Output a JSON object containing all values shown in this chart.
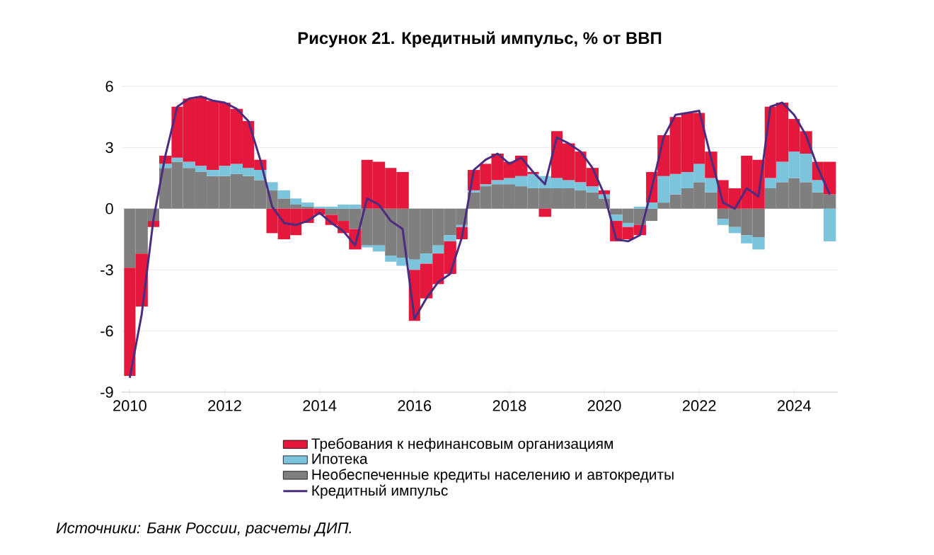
{
  "chart_data": {
    "type": "bar",
    "stacked": true,
    "title": "Рисунок 21. Кредитный импульс, % от ВВП",
    "annotations": [
      "Источники: Банк России, расчеты ДИП."
    ],
    "x": [
      "2010-01",
      "2010-04",
      "2010-07",
      "2010-10",
      "2011-01",
      "2011-04",
      "2011-07",
      "2011-10",
      "2012-01",
      "2012-04",
      "2012-07",
      "2012-10",
      "2013-01",
      "2013-04",
      "2013-07",
      "2013-10",
      "2014-01",
      "2014-04",
      "2014-07",
      "2014-10",
      "2015-01",
      "2015-04",
      "2015-07",
      "2015-10",
      "2016-01",
      "2016-04",
      "2016-07",
      "2016-10",
      "2017-01",
      "2017-04",
      "2017-07",
      "2017-10",
      "2018-01",
      "2018-04",
      "2018-07",
      "2018-10",
      "2019-01",
      "2019-04",
      "2019-07",
      "2019-10",
      "2020-01",
      "2020-04",
      "2020-07",
      "2020-10",
      "2021-01",
      "2021-04",
      "2021-07",
      "2021-10",
      "2022-01",
      "2022-04",
      "2022-07",
      "2022-10",
      "2023-01",
      "2023-04",
      "2023-07",
      "2023-10",
      "2024-01",
      "2024-04",
      "2024-07",
      "2024-10"
    ],
    "series": [
      {
        "name": "Необеспеченные кредиты населению и автокредиты",
        "color": "#7f7f7f",
        "values": [
          -2.9,
          -2.2,
          -0.6,
          2.0,
          2.3,
          2.0,
          1.8,
          1.6,
          1.6,
          1.7,
          1.6,
          1.4,
          0.9,
          0.5,
          0.2,
          0.1,
          0,
          -0.3,
          -0.6,
          -1.0,
          -1.8,
          -1.8,
          -2.3,
          -2.4,
          -2.5,
          -2.2,
          -1.8,
          -1.3,
          -0.8,
          0.8,
          1.1,
          1.2,
          1.2,
          1.1,
          1.0,
          1.0,
          1.0,
          1.0,
          0.9,
          0.8,
          0.5,
          -0.3,
          -0.7,
          -0.8,
          -0.6,
          0.3,
          0.7,
          1.0,
          1.3,
          0.8,
          -0.5,
          -0.9,
          -1.3,
          -1.4,
          1.0,
          1.3,
          1.5,
          1.3,
          0.8,
          0.7
        ]
      },
      {
        "name": "Ипотека",
        "color": "#7cc3dc",
        "values": [
          0,
          0,
          0,
          0.2,
          0.2,
          0.3,
          0.3,
          0.3,
          0.5,
          0.5,
          0.4,
          0.5,
          0.4,
          0.4,
          0.3,
          0.2,
          0.1,
          0.1,
          0.2,
          0.2,
          -0.1,
          -0.3,
          -0.3,
          -0.4,
          -0.5,
          -0.5,
          -0.4,
          -0.3,
          -0.1,
          0.1,
          0.1,
          0.2,
          0.3,
          0.5,
          0.7,
          0.6,
          0.5,
          0.4,
          0.4,
          0.3,
          0.2,
          -0.3,
          -0.2,
          0.1,
          0.3,
          1.3,
          1.0,
          0.8,
          0.9,
          0.7,
          -0.3,
          -0.3,
          -0.4,
          -0.6,
          0.5,
          1.0,
          1.3,
          1.4,
          0.6,
          -1.6
        ]
      },
      {
        "name": "Требования к нефинансовым организациям",
        "color": "#e4183c",
        "values": [
          -5.3,
          -2.6,
          -0.3,
          0.4,
          2.5,
          3.1,
          3.4,
          3.4,
          3.1,
          2.7,
          2.3,
          0.5,
          -1.2,
          -1.5,
          -1.3,
          -0.7,
          -0.3,
          -0.5,
          -0.6,
          -1.0,
          2.4,
          2.3,
          2.0,
          1.8,
          -2.5,
          -1.7,
          -1.5,
          -1.6,
          -0.6,
          1.0,
          1.0,
          1.3,
          0.8,
          1.0,
          0.1,
          -0.4,
          2.3,
          1.8,
          1.5,
          0.9,
          0.2,
          -1.0,
          -0.6,
          -0.5,
          1.5,
          2.0,
          2.8,
          2.9,
          2.5,
          1.3,
          1.4,
          1.0,
          2.6,
          2.4,
          3.5,
          2.9,
          1.6,
          1.1,
          0.9,
          1.6
        ]
      },
      {
        "name": "Кредитный импульс",
        "type": "line",
        "color": "#4b2c7f",
        "values": [
          -8.3,
          -5.2,
          -0.5,
          2.6,
          5.0,
          5.4,
          5.5,
          5.3,
          5.2,
          4.9,
          4.3,
          2.4,
          0.1,
          -0.7,
          -0.8,
          -0.6,
          -0.2,
          -0.7,
          -1.1,
          -1.8,
          0.5,
          0.2,
          -0.6,
          -1.0,
          -5.4,
          -4.4,
          -3.6,
          -3.2,
          -1.4,
          1.9,
          2.4,
          2.7,
          2.2,
          2.5,
          1.8,
          1.2,
          3.5,
          3.2,
          2.8,
          2.0,
          0.7,
          -1.5,
          -1.6,
          -1.3,
          1.0,
          3.5,
          4.6,
          4.7,
          4.8,
          2.5,
          0.3,
          0.0,
          1.0,
          0.6,
          5.0,
          5.2,
          4.6,
          3.6,
          2.0,
          0.7
        ]
      }
    ],
    "xlim": [
      "2009-11",
      "2024-12"
    ],
    "ylim": [
      -9,
      6
    ],
    "xticks": [
      "2010",
      "2012",
      "2014",
      "2016",
      "2018",
      "2020",
      "2022",
      "2024"
    ],
    "yticks": [
      -9,
      -6,
      -3,
      0,
      3,
      6
    ],
    "grid": "y",
    "legend": "bottom"
  }
}
